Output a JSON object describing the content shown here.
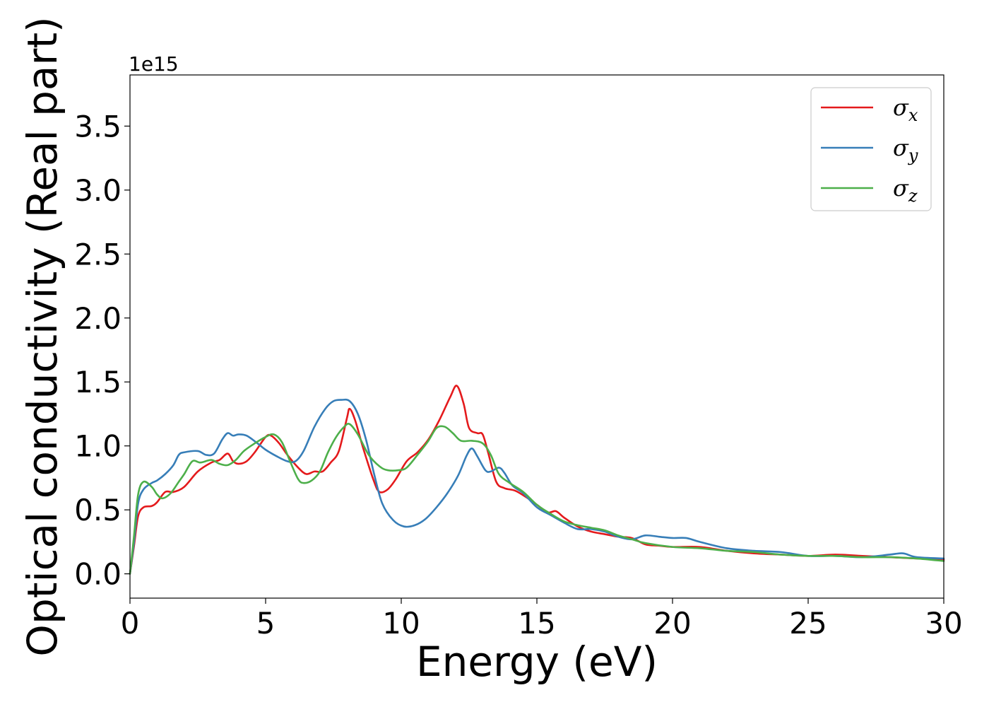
{
  "chart_data": {
    "type": "line",
    "title": "",
    "xlabel": "Energy (eV)",
    "ylabel": "Optical conductivity (Real part)",
    "y_offset_text": "1e15",
    "xlim": [
      0,
      30
    ],
    "ylim": [
      -0.19,
      3.9
    ],
    "x_ticks": [
      0,
      5,
      10,
      15,
      20,
      25,
      30
    ],
    "x_tick_labels": [
      "0",
      "5",
      "10",
      "15",
      "20",
      "25",
      "30"
    ],
    "y_ticks": [
      0.0,
      0.5,
      1.0,
      1.5,
      2.0,
      2.5,
      3.0,
      3.5
    ],
    "y_tick_labels": [
      "0.0",
      "0.5",
      "1.0",
      "1.5",
      "2.0",
      "2.5",
      "3.0",
      "3.5"
    ],
    "grid": false,
    "legend_position": "top-right",
    "series": [
      {
        "name": "σx",
        "legend_base": "σ",
        "legend_sub": "x",
        "color": "#e41a1c",
        "points": [
          [
            0,
            0
          ],
          [
            0.15,
            0.22
          ],
          [
            0.3,
            0.45
          ],
          [
            0.5,
            0.52
          ],
          [
            0.8,
            0.53
          ],
          [
            1.0,
            0.56
          ],
          [
            1.3,
            0.64
          ],
          [
            1.6,
            0.64
          ],
          [
            2.0,
            0.68
          ],
          [
            2.5,
            0.8
          ],
          [
            3.0,
            0.87
          ],
          [
            3.3,
            0.89
          ],
          [
            3.6,
            0.94
          ],
          [
            3.8,
            0.88
          ],
          [
            4.0,
            0.86
          ],
          [
            4.3,
            0.88
          ],
          [
            4.6,
            0.95
          ],
          [
            5.0,
            1.07
          ],
          [
            5.2,
            1.08
          ],
          [
            5.5,
            1.02
          ],
          [
            5.8,
            0.93
          ],
          [
            6.2,
            0.83
          ],
          [
            6.5,
            0.78
          ],
          [
            6.8,
            0.8
          ],
          [
            7.1,
            0.8
          ],
          [
            7.4,
            0.87
          ],
          [
            7.7,
            0.96
          ],
          [
            8.0,
            1.22
          ],
          [
            8.1,
            1.29
          ],
          [
            8.3,
            1.2
          ],
          [
            8.6,
            0.98
          ],
          [
            9.0,
            0.72
          ],
          [
            9.2,
            0.64
          ],
          [
            9.5,
            0.66
          ],
          [
            9.8,
            0.74
          ],
          [
            10.2,
            0.88
          ],
          [
            10.6,
            0.95
          ],
          [
            11.0,
            1.05
          ],
          [
            11.4,
            1.2
          ],
          [
            11.8,
            1.38
          ],
          [
            12.05,
            1.47
          ],
          [
            12.3,
            1.33
          ],
          [
            12.5,
            1.14
          ],
          [
            12.8,
            1.1
          ],
          [
            13.0,
            1.09
          ],
          [
            13.2,
            0.95
          ],
          [
            13.5,
            0.72
          ],
          [
            13.8,
            0.67
          ],
          [
            14.2,
            0.65
          ],
          [
            14.6,
            0.6
          ],
          [
            15.0,
            0.54
          ],
          [
            15.4,
            0.48
          ],
          [
            15.7,
            0.49
          ],
          [
            16.0,
            0.44
          ],
          [
            16.5,
            0.37
          ],
          [
            17.0,
            0.33
          ],
          [
            17.5,
            0.31
          ],
          [
            18.0,
            0.29
          ],
          [
            18.5,
            0.28
          ],
          [
            19.0,
            0.23
          ],
          [
            19.5,
            0.22
          ],
          [
            20.0,
            0.21
          ],
          [
            21.0,
            0.21
          ],
          [
            22.0,
            0.18
          ],
          [
            23.0,
            0.16
          ],
          [
            24.0,
            0.15
          ],
          [
            25.0,
            0.14
          ],
          [
            26.0,
            0.15
          ],
          [
            27.0,
            0.14
          ],
          [
            28.0,
            0.13
          ],
          [
            29.0,
            0.12
          ],
          [
            30.0,
            0.11
          ]
        ]
      },
      {
        "name": "σy",
        "legend_base": "σ",
        "legend_sub": "y",
        "color": "#377eb8",
        "points": [
          [
            0,
            0
          ],
          [
            0.15,
            0.25
          ],
          [
            0.3,
            0.55
          ],
          [
            0.5,
            0.66
          ],
          [
            0.8,
            0.71
          ],
          [
            1.0,
            0.73
          ],
          [
            1.3,
            0.78
          ],
          [
            1.6,
            0.85
          ],
          [
            1.8,
            0.93
          ],
          [
            2.0,
            0.95
          ],
          [
            2.5,
            0.96
          ],
          [
            2.8,
            0.93
          ],
          [
            3.1,
            0.94
          ],
          [
            3.4,
            1.05
          ],
          [
            3.6,
            1.1
          ],
          [
            3.8,
            1.08
          ],
          [
            4.0,
            1.09
          ],
          [
            4.3,
            1.08
          ],
          [
            4.7,
            1.02
          ],
          [
            5.0,
            0.97
          ],
          [
            5.4,
            0.92
          ],
          [
            5.8,
            0.88
          ],
          [
            6.1,
            0.88
          ],
          [
            6.4,
            0.96
          ],
          [
            6.8,
            1.15
          ],
          [
            7.2,
            1.29
          ],
          [
            7.5,
            1.35
          ],
          [
            7.8,
            1.36
          ],
          [
            8.1,
            1.35
          ],
          [
            8.4,
            1.25
          ],
          [
            8.7,
            1.05
          ],
          [
            9.0,
            0.78
          ],
          [
            9.3,
            0.55
          ],
          [
            9.7,
            0.42
          ],
          [
            10.1,
            0.37
          ],
          [
            10.5,
            0.38
          ],
          [
            10.9,
            0.43
          ],
          [
            11.3,
            0.52
          ],
          [
            11.7,
            0.63
          ],
          [
            12.1,
            0.77
          ],
          [
            12.4,
            0.92
          ],
          [
            12.6,
            0.98
          ],
          [
            12.8,
            0.92
          ],
          [
            13.1,
            0.81
          ],
          [
            13.3,
            0.8
          ],
          [
            13.6,
            0.83
          ],
          [
            13.8,
            0.79
          ],
          [
            14.1,
            0.69
          ],
          [
            14.5,
            0.63
          ],
          [
            15.0,
            0.52
          ],
          [
            15.5,
            0.46
          ],
          [
            16.0,
            0.4
          ],
          [
            16.5,
            0.35
          ],
          [
            17.0,
            0.35
          ],
          [
            17.5,
            0.33
          ],
          [
            18.0,
            0.29
          ],
          [
            18.5,
            0.27
          ],
          [
            19.0,
            0.3
          ],
          [
            19.5,
            0.29
          ],
          [
            20.0,
            0.28
          ],
          [
            20.5,
            0.28
          ],
          [
            21.0,
            0.25
          ],
          [
            22.0,
            0.2
          ],
          [
            23.0,
            0.18
          ],
          [
            24.0,
            0.17
          ],
          [
            25.0,
            0.14
          ],
          [
            26.0,
            0.14
          ],
          [
            27.0,
            0.13
          ],
          [
            28.0,
            0.15
          ],
          [
            28.5,
            0.16
          ],
          [
            29.0,
            0.13
          ],
          [
            30.0,
            0.12
          ]
        ]
      },
      {
        "name": "σz",
        "legend_base": "σ",
        "legend_sub": "z",
        "color": "#4daf4a",
        "points": [
          [
            0,
            0
          ],
          [
            0.15,
            0.3
          ],
          [
            0.3,
            0.62
          ],
          [
            0.5,
            0.72
          ],
          [
            0.8,
            0.68
          ],
          [
            1.0,
            0.62
          ],
          [
            1.2,
            0.59
          ],
          [
            1.5,
            0.63
          ],
          [
            1.8,
            0.72
          ],
          [
            2.0,
            0.78
          ],
          [
            2.3,
            0.88
          ],
          [
            2.6,
            0.87
          ],
          [
            3.0,
            0.89
          ],
          [
            3.3,
            0.86
          ],
          [
            3.6,
            0.85
          ],
          [
            3.9,
            0.89
          ],
          [
            4.2,
            0.96
          ],
          [
            4.6,
            1.02
          ],
          [
            5.0,
            1.07
          ],
          [
            5.3,
            1.09
          ],
          [
            5.6,
            1.03
          ],
          [
            5.9,
            0.88
          ],
          [
            6.2,
            0.74
          ],
          [
            6.4,
            0.71
          ],
          [
            6.7,
            0.73
          ],
          [
            7.0,
            0.8
          ],
          [
            7.3,
            0.95
          ],
          [
            7.6,
            1.07
          ],
          [
            7.9,
            1.15
          ],
          [
            8.1,
            1.17
          ],
          [
            8.4,
            1.09
          ],
          [
            8.8,
            0.93
          ],
          [
            9.2,
            0.84
          ],
          [
            9.5,
            0.81
          ],
          [
            9.9,
            0.81
          ],
          [
            10.2,
            0.83
          ],
          [
            10.6,
            0.93
          ],
          [
            11.0,
            1.04
          ],
          [
            11.3,
            1.14
          ],
          [
            11.6,
            1.15
          ],
          [
            11.9,
            1.1
          ],
          [
            12.2,
            1.04
          ],
          [
            12.6,
            1.04
          ],
          [
            13.0,
            1.02
          ],
          [
            13.3,
            0.93
          ],
          [
            13.6,
            0.78
          ],
          [
            14.0,
            0.71
          ],
          [
            14.5,
            0.64
          ],
          [
            15.0,
            0.54
          ],
          [
            15.5,
            0.47
          ],
          [
            16.0,
            0.41
          ],
          [
            16.5,
            0.38
          ],
          [
            17.0,
            0.36
          ],
          [
            17.5,
            0.34
          ],
          [
            18.0,
            0.3
          ],
          [
            18.5,
            0.27
          ],
          [
            19.0,
            0.24
          ],
          [
            20.0,
            0.21
          ],
          [
            21.0,
            0.2
          ],
          [
            22.0,
            0.18
          ],
          [
            23.0,
            0.17
          ],
          [
            24.0,
            0.15
          ],
          [
            25.0,
            0.14
          ],
          [
            26.0,
            0.14
          ],
          [
            27.0,
            0.13
          ],
          [
            28.0,
            0.13
          ],
          [
            29.0,
            0.12
          ],
          [
            30.0,
            0.1
          ]
        ]
      }
    ]
  }
}
